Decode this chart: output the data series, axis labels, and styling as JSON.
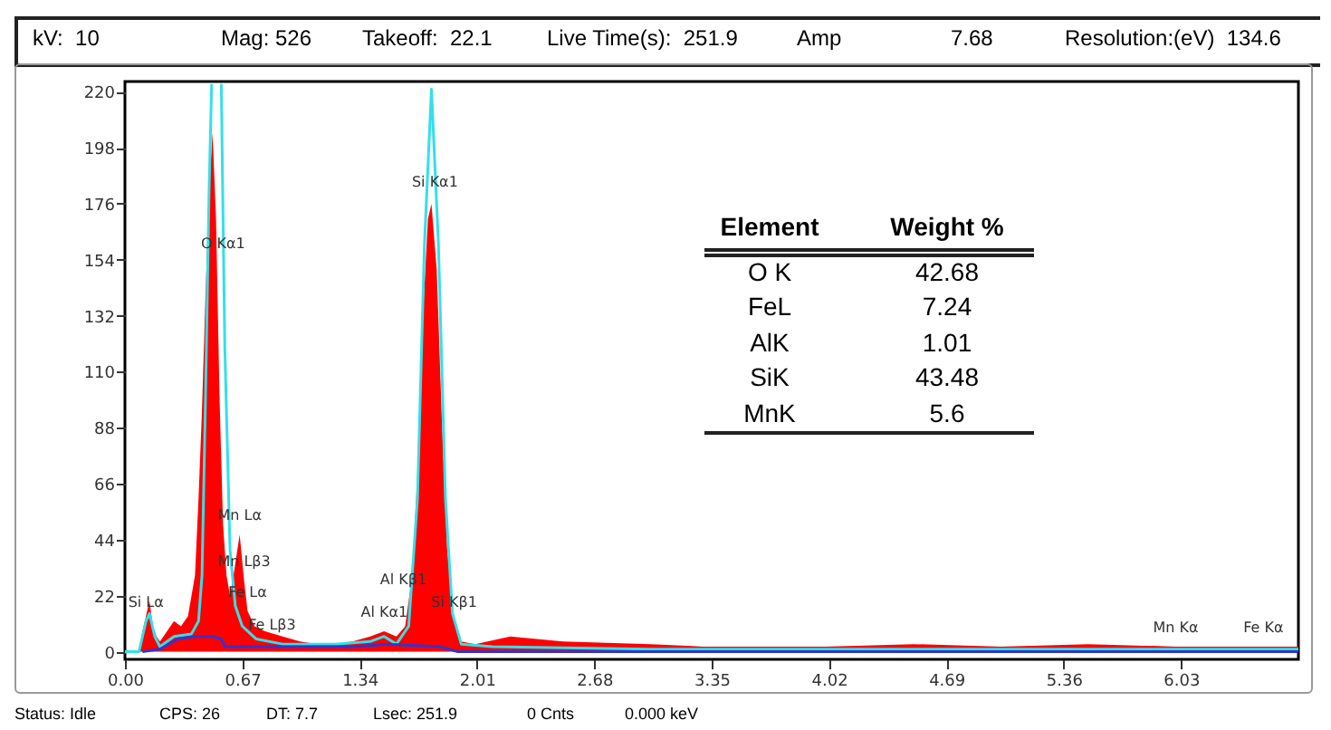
{
  "chart_data": {
    "type": "area",
    "xlim": [
      0,
      6.7
    ],
    "ylim": [
      -3,
      224
    ],
    "xticks": [
      {
        "value": 0,
        "label": "0.00"
      },
      0.67,
      1.34,
      2.01,
      2.68,
      3.35,
      4.02,
      4.69,
      5.36,
      6.03
    ],
    "yticks": [
      0,
      22,
      44,
      66,
      88,
      110,
      132,
      154,
      176,
      198,
      220
    ],
    "series": [
      {
        "color": "#ff0000",
        "x": [
          0,
          0.08,
          0.1,
          0.12,
          0.14,
          0.16,
          0.18,
          0.2,
          0.24,
          0.28,
          0.32,
          0.36,
          0.4,
          0.42,
          0.44,
          0.46,
          0.48,
          0.5,
          0.52,
          0.54,
          0.56,
          0.58,
          0.6,
          0.62,
          0.655,
          0.68,
          0.7,
          0.74,
          0.8,
          0.9,
          1.0,
          1.1,
          1.2,
          1.3,
          1.4,
          1.48,
          1.55,
          1.6,
          1.64,
          1.67,
          1.7,
          1.73,
          1.75,
          1.78,
          1.81,
          1.84,
          1.88,
          1.92,
          2.0,
          2.2,
          2.5,
          3.0,
          3.3,
          3.6,
          4.0,
          4.5,
          5.0,
          5.5,
          6.0,
          6.5,
          6.7
        ],
        "values": [
          0,
          0,
          8,
          14,
          20,
          10,
          6,
          4,
          8,
          12,
          10,
          14,
          30,
          60,
          95,
          140,
          180,
          204,
          170,
          100,
          50,
          30,
          22,
          30,
          46,
          28,
          16,
          10,
          8,
          6,
          4,
          3,
          3,
          4,
          6,
          8,
          6,
          10,
          30,
          70,
          130,
          170,
          176,
          150,
          90,
          40,
          12,
          4,
          3,
          6,
          4,
          3,
          2,
          2,
          2,
          3,
          2,
          3,
          2,
          2,
          2
        ]
      },
      {
        "type": "line",
        "color": "#33e0e8",
        "x": [
          0,
          0.08,
          0.12,
          0.14,
          0.17,
          0.2,
          0.28,
          0.38,
          0.42,
          0.44,
          0.46,
          0.48,
          0.495,
          0.52,
          0.55,
          0.57,
          0.6,
          0.63,
          0.67,
          0.75,
          0.9,
          1.2,
          1.4,
          1.48,
          1.55,
          1.62,
          1.67,
          1.71,
          1.75,
          1.79,
          1.83,
          1.87,
          1.92,
          2.1,
          3.0,
          4.0,
          5.0,
          6.0,
          6.7
        ],
        "values": [
          0,
          0,
          12,
          15,
          6,
          2,
          6,
          7,
          12,
          30,
          100,
          180,
          223,
          null,
          223,
          120,
          40,
          18,
          10,
          5,
          3,
          3,
          4,
          6,
          3,
          10,
          60,
          160,
          221,
          160,
          60,
          15,
          3,
          2,
          1,
          1,
          1,
          1,
          1
        ]
      },
      {
        "type": "line",
        "color": "#3333cc",
        "x": [
          0.1,
          0.2,
          0.3,
          0.4,
          0.5,
          0.55,
          0.57,
          0.7,
          1.0,
          1.3,
          1.5,
          1.8,
          1.9,
          6.7
        ],
        "values": [
          0,
          1,
          5,
          6,
          6,
          5,
          2,
          2,
          2,
          2,
          3,
          2,
          0,
          0
        ]
      }
    ],
    "annotations": [
      "kV:  10",
      "Mag: 526",
      "Takeoff:  22.1",
      "Live Time(s):  251.9",
      "Amp",
      "7.68",
      "Resolution:(eV)  134.6",
      "Element",
      "Weight %",
      "O K",
      "42.68",
      "FeL",
      "7.24",
      "AlK",
      "1.01",
      "SiK",
      "43.48",
      "MnK",
      "5.6",
      "Status: Idle",
      "CPS: 26",
      "DT: 7.7",
      "Lsec: 251.9",
      "0 Cnts",
      "0.000 keV",
      {
        "text": "Si Lα",
        "x": 0.12,
        "y": 12
      },
      {
        "text": "O Kα1",
        "x": 0.56,
        "y": 153
      },
      {
        "text": "Mn Lα",
        "x": 0.655,
        "y": 46
      },
      {
        "text": "Mn Lβ3",
        "x": 0.68,
        "y": 28
      },
      {
        "text": "Fe Lα",
        "x": 0.7,
        "y": 16
      },
      {
        "text": "Fe Lβ3",
        "x": 0.84,
        "y": 3
      },
      {
        "text": "Al Kβ1",
        "x": 1.59,
        "y": 21
      },
      {
        "text": "Al Kα1",
        "x": 1.48,
        "y": 8
      },
      {
        "text": "Si Kβ1",
        "x": 1.88,
        "y": 12
      },
      {
        "text": "Si Kα1",
        "x": 1.77,
        "y": 177
      },
      {
        "text": "Mn Kα",
        "x": 6.0,
        "y": 2
      },
      {
        "text": "Fe Kα",
        "x": 6.5,
        "y": 2
      }
    ]
  }
}
